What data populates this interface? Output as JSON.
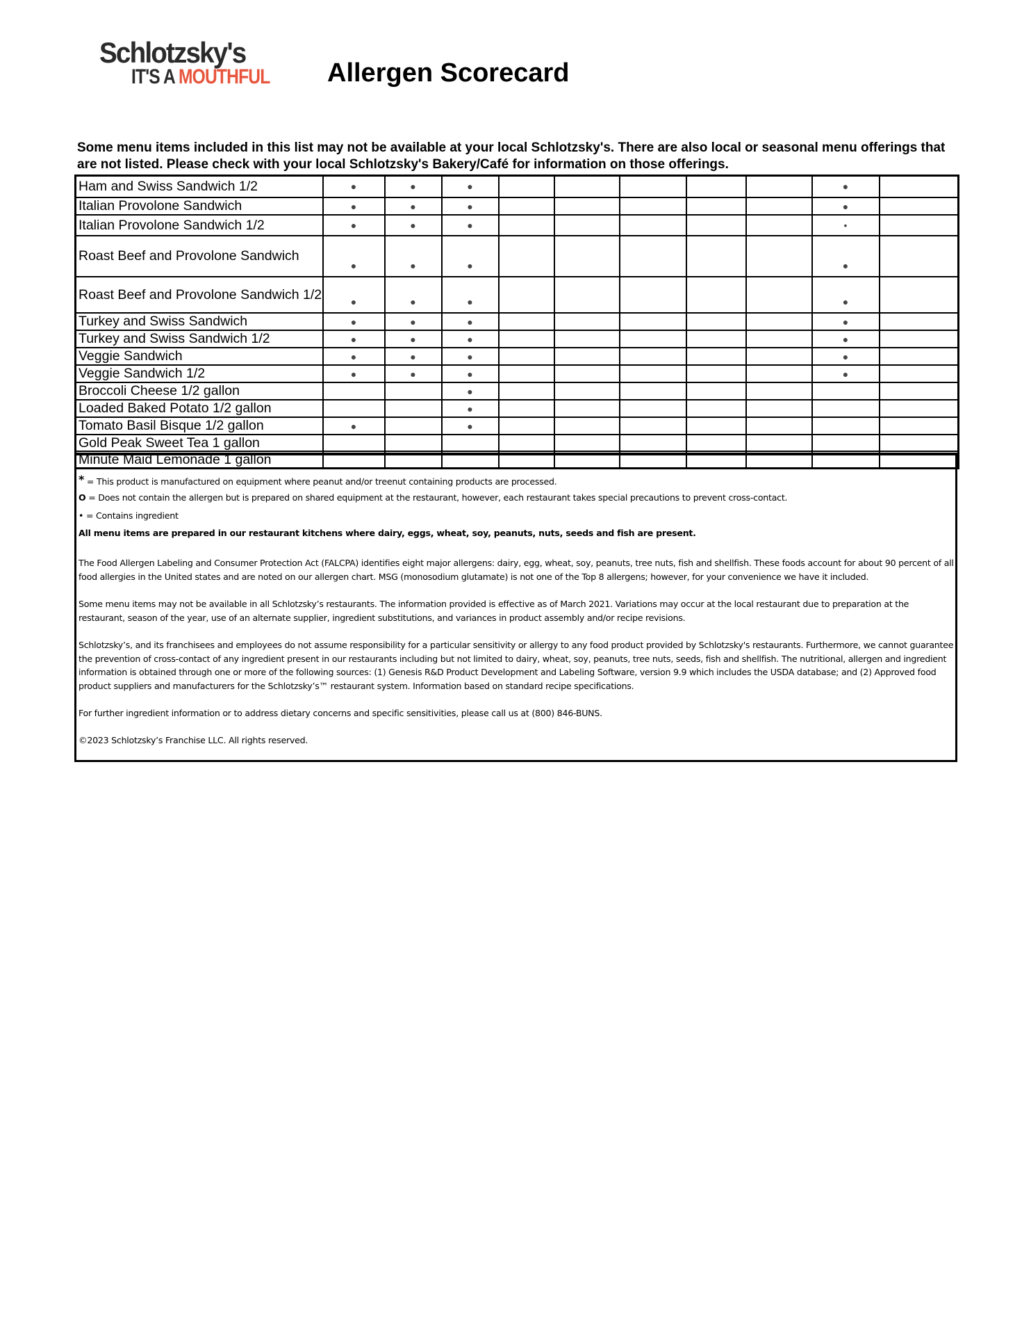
{
  "logo": {
    "line1": "Schlotzsky's",
    "line2a": "IT'S A ",
    "line2b": "MOUTHFUL",
    "accent_color": "#e8553d"
  },
  "title": "Allergen Scorecard",
  "intro": "Some menu items included in this list may not be available at your local Schlotzsky's. There are also local or seasonal menu offerings that are not listed.  Please check with your local Schlotzsky's Bakery/Café for information on those offerings.",
  "table": {
    "rows": [
      {
        "name": "Ham and Swiss  Sandwich 1/2",
        "cells": [
          "●",
          "●",
          "●",
          "",
          "",
          "",
          "",
          "",
          "●",
          ""
        ]
      },
      {
        "name": "Italian Provolone Sandwich",
        "cells": [
          "●",
          "●",
          "●",
          "",
          "",
          "",
          "",
          "",
          "●",
          ""
        ]
      },
      {
        "name": "Italian Provolone Sandwich 1/2",
        "cells": [
          "●",
          "●",
          "●",
          "",
          "",
          "",
          "",
          "",
          "•",
          ""
        ]
      },
      {
        "name": "Roast Beef and Provolone Sandwich",
        "cells": [
          "●",
          "●",
          "●",
          "",
          "",
          "",
          "",
          "",
          "●",
          ""
        ]
      },
      {
        "name": "Roast Beef and Provolone Sandwich 1/2",
        "cells": [
          "●",
          "●",
          "●",
          "",
          "",
          "",
          "",
          "",
          "●",
          ""
        ]
      },
      {
        "name": "Turkey and Swiss Sandwich",
        "cells": [
          "●",
          "●",
          "●",
          "",
          "",
          "",
          "",
          "",
          "●",
          ""
        ]
      },
      {
        "name": "Turkey and Swiss Sandwich 1/2",
        "cells": [
          "●",
          "●",
          "●",
          "",
          "",
          "",
          "",
          "",
          "●",
          ""
        ]
      },
      {
        "name": "Veggie Sandwich",
        "cells": [
          "●",
          "●",
          "●",
          "",
          "",
          "",
          "",
          "",
          "●",
          ""
        ]
      },
      {
        "name": "Veggie Sandwich 1/2",
        "cells": [
          "●",
          "●",
          "●",
          "",
          "",
          "",
          "",
          "",
          "●",
          ""
        ]
      },
      {
        "name": "Broccoli Cheese 1/2 gallon",
        "cells": [
          "",
          "",
          "●",
          "",
          "",
          "",
          "",
          "",
          "",
          ""
        ]
      },
      {
        "name": "Loaded Baked Potato 1/2 gallon",
        "cells": [
          "",
          "",
          "●",
          "",
          "",
          "",
          "",
          "",
          "",
          ""
        ]
      },
      {
        "name": "Tomato Basil Bisque 1/2 gallon",
        "cells": [
          "●",
          "",
          "●",
          "",
          "",
          "",
          "",
          "",
          "",
          ""
        ]
      },
      {
        "name": "Gold Peak Sweet Tea 1 gallon",
        "cells": [
          "",
          "",
          "",
          "",
          "",
          "",
          "",
          "",
          "",
          ""
        ]
      },
      {
        "name": "Minute Maid Lemonade 1 gallon",
        "cells": [
          "",
          "",
          "",
          "",
          "",
          "",
          "",
          "",
          "",
          ""
        ]
      }
    ]
  },
  "footer": {
    "legend_star_symbol": "*",
    "legend_star": " = This product is manufactured on equipment where peanut and/or treenut containing products are processed.",
    "legend_o_symbol": "O",
    "legend_o": " = Does not contain the allergen but is prepared on shared equipment at the restaurant, however, each restaurant takes special precautions to prevent cross-contact.",
    "legend_dot_symbol": "•",
    "legend_dot": " = Contains ingredient",
    "kitchen_note": "All menu items are prepared in our restaurant kitchens where dairy, eggs, wheat, soy, peanuts, nuts, seeds and fish are present.",
    "falcpa": "The Food Allergen Labeling and Consumer Protection Act (FALCPA) identifies eight major allergens: dairy, egg, wheat, soy, peanuts, tree nuts, fish and shellfish. These foods account for about 90 percent of all food allergies in the United states and are noted on our allergen chart. MSG (monosodium glutamate) is not one of the Top 8 allergens; however, for your convenience we have it included.",
    "availability": "Some menu items may not be available in all Schlotzsky’s restaurants. The information provided is effective as of March 2021. Variations may occur at the local restaurant due to preparation at the restaurant, season of the year, use of an alternate supplier, ingredient substitutions, and variances in product assembly and/or recipe revisions.",
    "disclaimer": "Schlotzsky’s, and its franchisees and employees do not assume responsibility for a particular sensitivity or allergy to any food product provided by Schlotzsky's restaurants. Furthermore, we cannot guarantee the prevention of cross-contact of any ingredient present in our restaurants including but not limited to dairy, wheat, soy, peanuts, tree nuts, seeds, fish and shellfish. The nutritional, allergen and ingredient information is obtained through one or more of the following sources: (1) Genesis R&D Product Development and Labeling Software, version 9.9 which includes the USDA database; and (2) Approved food product suppliers and manufacturers for the Schlotzsky’s™ restaurant system. Information based on standard recipe specifications.",
    "contact": "For further ingredient information or to address dietary concerns and specific sensitivities, please call us at (800) 846-BUNS.",
    "copyright": "©2023 Schlotzsky’s Franchise LLC. All rights reserved."
  }
}
